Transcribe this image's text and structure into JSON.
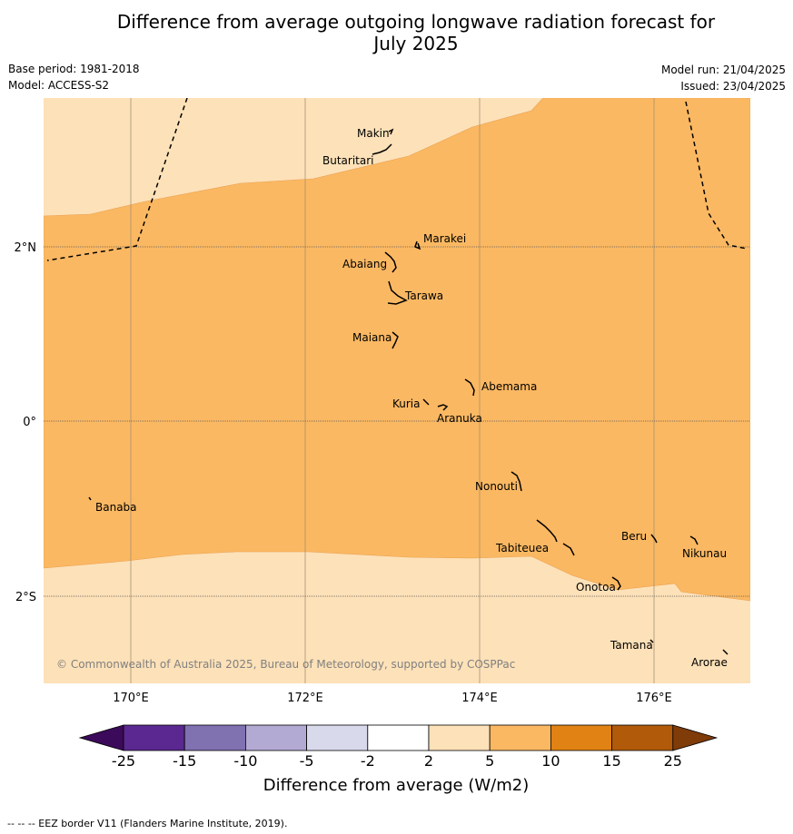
{
  "title_line1": "Difference from average outgoing longwave radiation forecast for",
  "title_line2": "July 2025",
  "meta": {
    "base_period": "Base period: 1981-2018",
    "model": "Model: ACCESS-S2",
    "model_run": "Model run: 21/04/2025",
    "issued": "Issued: 23/04/2025"
  },
  "map": {
    "lon_labels": [
      "170°E",
      "172°E",
      "174°E",
      "176°E"
    ],
    "lat_labels": [
      "2°N",
      "0°",
      "2°S"
    ],
    "copyright": "© Commonwealth of Australia 2025, Bureau of Meteorology, supported by COSPPac",
    "places": [
      "Makin",
      "Butaritari",
      "Marakei",
      "Abaiang",
      "Tarawa",
      "Maiana",
      "Abemama",
      "Kuria",
      "Aranuka",
      "Nonouti",
      "Banaba",
      "Beru",
      "Tabiteuea",
      "Nikunau",
      "Onotoa",
      "Tamana",
      "Arorae"
    ],
    "fill_colors": {
      "light": "#fde1b8",
      "mid": "#fbb862"
    }
  },
  "colorbar": {
    "title": "Difference from average (W/m2)",
    "ticks": [
      "-25",
      "-15",
      "-10",
      "-5",
      "-2",
      "2",
      "5",
      "10",
      "15",
      "25"
    ],
    "colors": [
      "#3c0a5a",
      "#5a2890",
      "#8071b0",
      "#b3aad3",
      "#d9d9ec",
      "#ffffff",
      "#fde1b8",
      "#fbb862",
      "#e08214",
      "#b15a0a",
      "#7f3b08"
    ]
  },
  "footer": "--  --  -- EEZ border V11 (Flanders Marine Institute, 2019)."
}
